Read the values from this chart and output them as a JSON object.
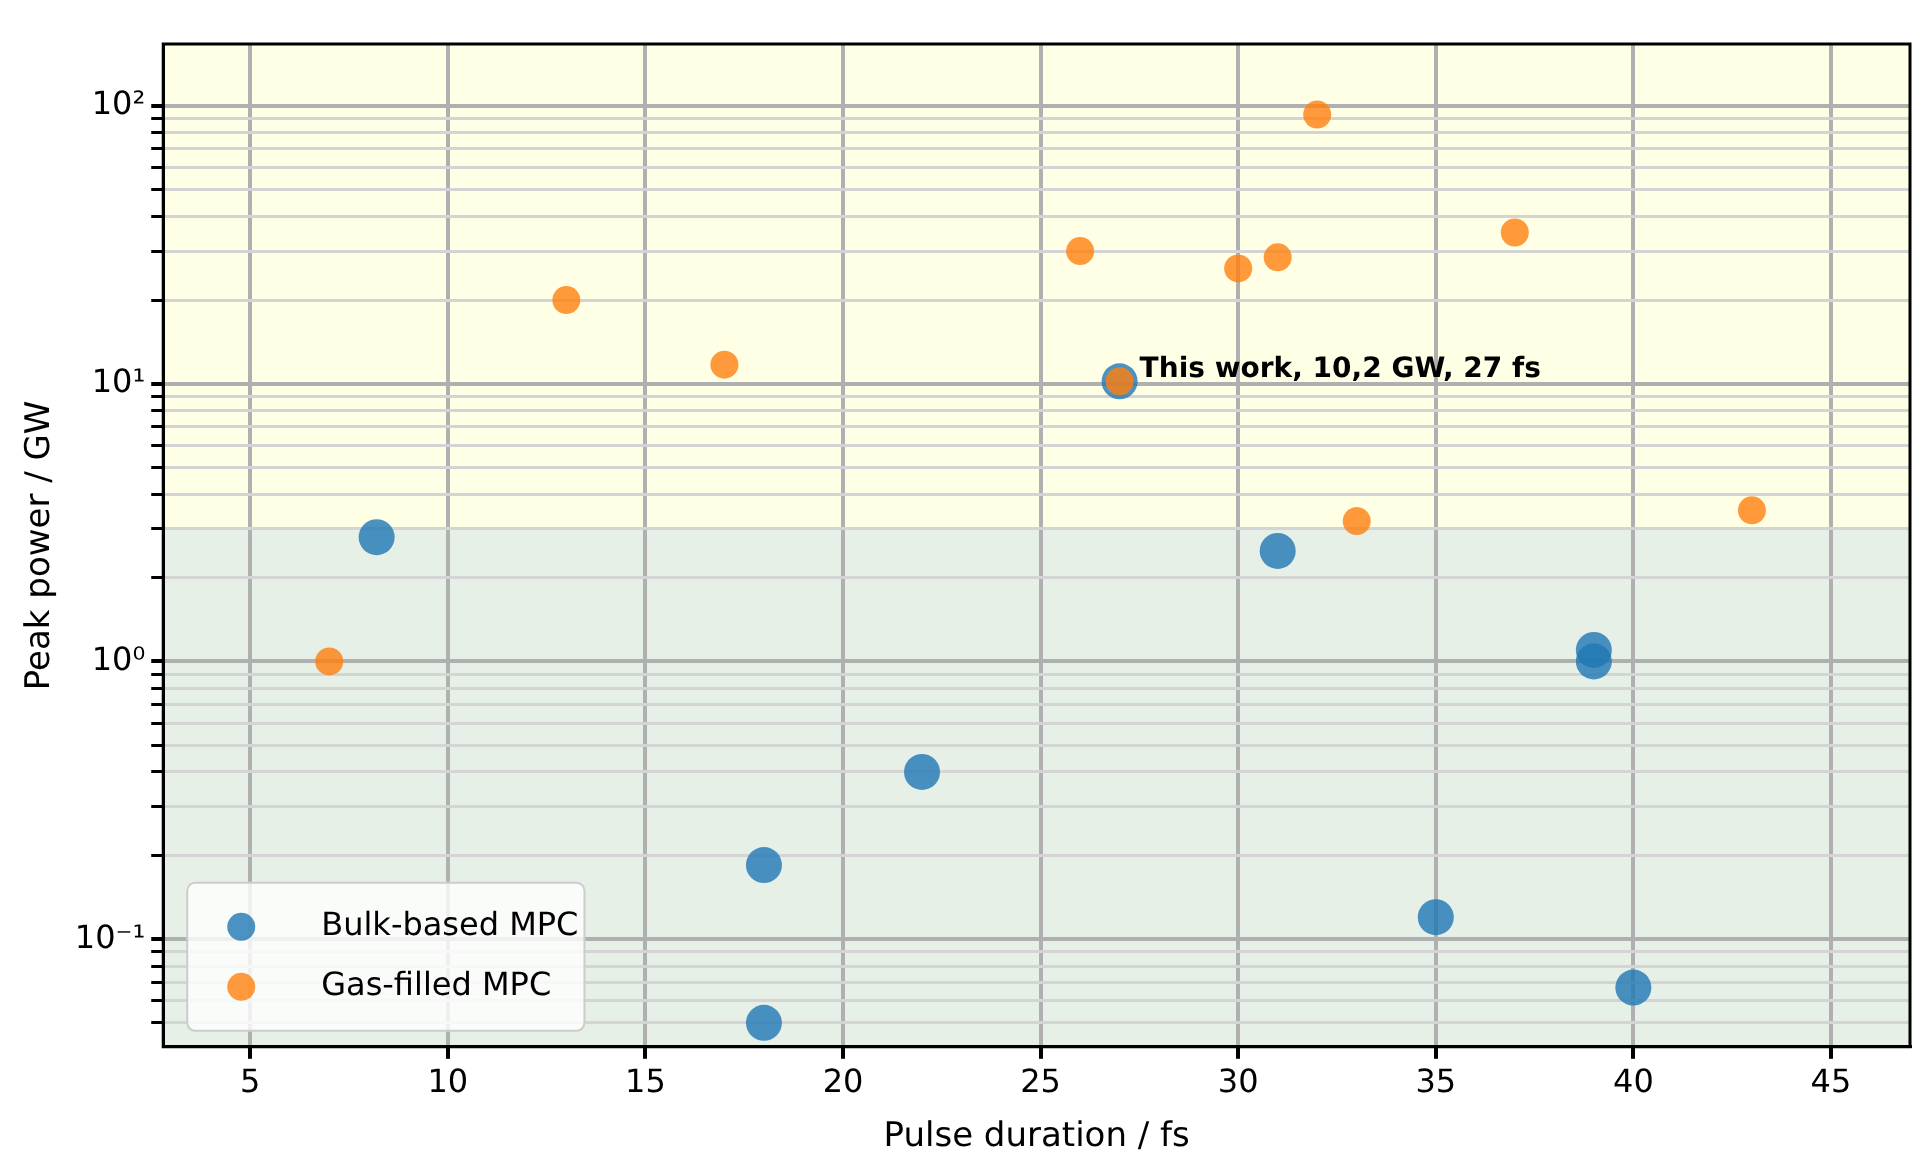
{
  "chart_data": {
    "type": "scatter",
    "xlabel": "Pulse duration / fs",
    "ylabel": "Peak power / GW",
    "xlim": [
      2.8,
      47.0
    ],
    "xticks": [
      5,
      10,
      15,
      20,
      25,
      30,
      35,
      40,
      45
    ],
    "ylim": [
      0.041,
      167
    ],
    "log": "y",
    "yticks": [
      {
        "value": 0.05,
        "label": null
      },
      {
        "value": 0.06,
        "label": null
      },
      {
        "value": 0.07,
        "label": null
      },
      {
        "value": 0.08,
        "label": null
      },
      {
        "value": 0.09,
        "label": null
      },
      {
        "value": 0.1,
        "label": "10⁻¹"
      },
      {
        "value": 0.2,
        "label": null
      },
      {
        "value": 0.3,
        "label": null
      },
      {
        "value": 0.4,
        "label": null
      },
      {
        "value": 0.5,
        "label": null
      },
      {
        "value": 0.6,
        "label": null
      },
      {
        "value": 0.7,
        "label": null
      },
      {
        "value": 0.8,
        "label": null
      },
      {
        "value": 0.9,
        "label": null
      },
      {
        "value": 1,
        "label": "10⁰"
      },
      {
        "value": 2,
        "label": null
      },
      {
        "value": 3,
        "label": null
      },
      {
        "value": 4,
        "label": null
      },
      {
        "value": 5,
        "label": null
      },
      {
        "value": 6,
        "label": null
      },
      {
        "value": 7,
        "label": null
      },
      {
        "value": 8,
        "label": null
      },
      {
        "value": 9,
        "label": null
      },
      {
        "value": 10,
        "label": "10¹"
      },
      {
        "value": 20,
        "label": null
      },
      {
        "value": 30,
        "label": null
      },
      {
        "value": 40,
        "label": null
      },
      {
        "value": 50,
        "label": null
      },
      {
        "value": 60,
        "label": null
      },
      {
        "value": 70,
        "label": null
      },
      {
        "value": 80,
        "label": null
      },
      {
        "value": 90,
        "label": null
      },
      {
        "value": 100,
        "label": "10²"
      }
    ],
    "grid": true,
    "legend": "bottom left",
    "marker": "circle",
    "bands": [
      {
        "axis": "y",
        "from": 3,
        "to": 167,
        "color": "#ffffe6"
      },
      {
        "axis": "y",
        "from": 0.041,
        "to": 3,
        "color": "#e6f0e6"
      }
    ],
    "annotations": [
      {
        "text": "This work, 10,2 GW, 27 fs",
        "x": 27,
        "y": 10.2
      }
    ],
    "series": [
      {
        "name": "Gas-filled MPC",
        "color": "#ff7f0e",
        "x": [
          7,
          13,
          17,
          26,
          27,
          30,
          31,
          32,
          33,
          37,
          43
        ],
        "values": [
          1.0,
          20,
          11.7,
          30,
          10.2,
          26,
          28.5,
          93,
          3.2,
          35,
          3.5
        ]
      },
      {
        "name": "Bulk-based MPC",
        "color": "#1f77b4",
        "x": [
          8.2,
          18,
          18,
          22,
          27,
          31,
          35,
          39,
          39,
          40
        ],
        "values": [
          2.8,
          0.185,
          0.05,
          0.4,
          10.2,
          2.5,
          0.12,
          1.1,
          1.0,
          0.067
        ]
      }
    ]
  }
}
